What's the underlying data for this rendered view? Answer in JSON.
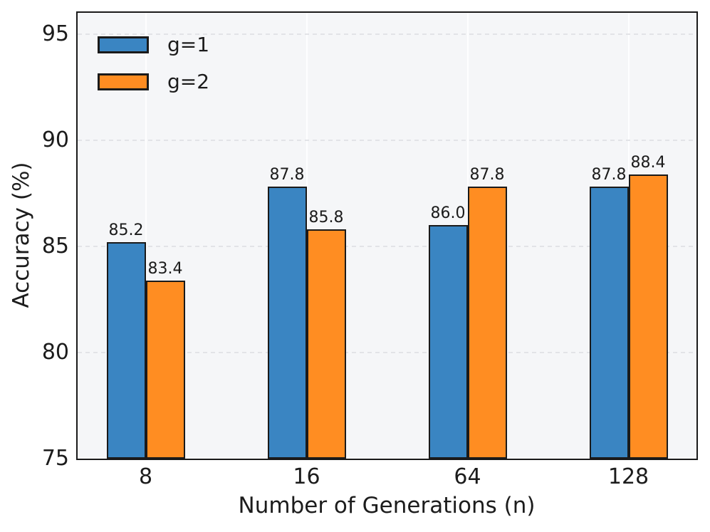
{
  "chart_data": {
    "type": "bar",
    "title": "",
    "xlabel": "Number of Generations (n)",
    "ylabel": "Accuracy (%)",
    "categories": [
      "8",
      "16",
      "64",
      "128"
    ],
    "series": [
      {
        "name": "g=1",
        "color": "#3a85c2",
        "values": [
          85.2,
          87.8,
          86.0,
          87.8
        ],
        "value_labels": [
          "85.2",
          "87.8",
          "86.0",
          "87.8"
        ]
      },
      {
        "name": "g=2",
        "color": "#ff8d22",
        "values": [
          83.4,
          85.8,
          87.8,
          88.4
        ],
        "value_labels": [
          "83.4",
          "85.8",
          "87.8",
          "88.4"
        ]
      }
    ],
    "y_ticks": [
      "75",
      "80",
      "85",
      "90",
      "95"
    ],
    "y_tick_values": [
      75,
      80,
      85,
      90,
      95
    ],
    "ylim": [
      75,
      96
    ],
    "legend_position": "upper-left",
    "grid": {
      "horizontal": "dashed-light-gray",
      "vertical": "solid-white"
    },
    "colors": {
      "bar_edge": "#1a1a1a",
      "plot_background": "#f5f6f8",
      "figure_background": "#ffffff",
      "grid_horizontal": "#e2e3e7",
      "grid_vertical": "#ffffff",
      "axis_border": "#1a1a1a",
      "text": "#1c1c1c"
    }
  }
}
